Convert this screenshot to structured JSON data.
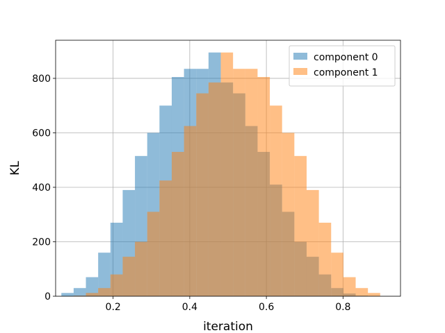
{
  "chart_data": {
    "type": "bar",
    "title": "",
    "xlabel": "iteration",
    "ylabel": "KL",
    "xlim": [
      0.05,
      0.95
    ],
    "ylim": [
      0,
      940
    ],
    "grid": true,
    "legend_position": "top-right",
    "x_ticks": [
      "0.2",
      "0.4",
      "0.6",
      "0.8"
    ],
    "y_ticks": [
      "0",
      "200",
      "400",
      "600",
      "800"
    ],
    "series": [
      {
        "name": "component 0",
        "color": "#1f77b4",
        "opacity": 0.5,
        "bin_edges": [
          0.065,
          0.097,
          0.129,
          0.161,
          0.193,
          0.225,
          0.257,
          0.289,
          0.321,
          0.353,
          0.385,
          0.417,
          0.449,
          0.481,
          0.513,
          0.545,
          0.577,
          0.609,
          0.641,
          0.673,
          0.705,
          0.737,
          0.769,
          0.801,
          0.833,
          0.865,
          0.897
        ],
        "values": [
          12,
          30,
          70,
          160,
          270,
          390,
          515,
          600,
          700,
          805,
          835,
          835,
          895,
          785,
          745,
          625,
          530,
          410,
          310,
          200,
          145,
          80,
          30,
          10,
          2,
          0
        ]
      },
      {
        "name": "component 1",
        "color": "#ff7f0e",
        "opacity": 0.5,
        "bin_edges": [
          0.097,
          0.129,
          0.161,
          0.193,
          0.225,
          0.257,
          0.289,
          0.321,
          0.353,
          0.385,
          0.417,
          0.449,
          0.481,
          0.513,
          0.545,
          0.577,
          0.609,
          0.641,
          0.673,
          0.705,
          0.737,
          0.769,
          0.801,
          0.833,
          0.865,
          0.897,
          0.929
        ],
        "values": [
          2,
          12,
          30,
          80,
          145,
          200,
          310,
          425,
          530,
          625,
          745,
          785,
          895,
          835,
          835,
          805,
          700,
          600,
          515,
          390,
          270,
          160,
          70,
          30,
          12,
          0
        ]
      }
    ]
  }
}
